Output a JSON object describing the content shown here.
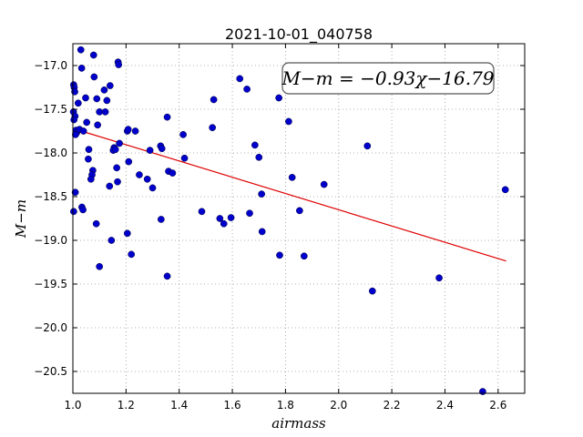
{
  "chart_data": {
    "type": "scatter",
    "title": "2021-10-01_040758",
    "xlabel": "airmass",
    "ylabel": "M−m",
    "xlim": [
      1.0,
      2.7
    ],
    "ylim": [
      -20.75,
      -16.75
    ],
    "y_inverted": true,
    "grid": true,
    "x_ticks": [
      "1.0",
      "1.2",
      "1.4",
      "1.6",
      "1.8",
      "2.0",
      "2.2",
      "2.4",
      "2.6"
    ],
    "y_ticks": [
      "−17.0",
      "−17.5",
      "−18.0",
      "−18.5",
      "−19.0",
      "−19.5",
      "−20.0",
      "−20.5"
    ],
    "annotation": "M−m = −0.93χ−16.79",
    "fit": {
      "slope": -0.93,
      "intercept": -16.79,
      "x_range": [
        1.0,
        2.63
      ]
    },
    "colors": {
      "points": "#0000cc",
      "fit_line": "#dd0000",
      "grid": "#999999"
    },
    "points": [
      [
        1.003,
        -17.22
      ],
      [
        1.005,
        -17.25
      ],
      [
        1.007,
        -17.3
      ],
      [
        1.002,
        -17.53
      ],
      [
        1.008,
        -17.58
      ],
      [
        1.004,
        -17.62
      ],
      [
        1.012,
        -17.74
      ],
      [
        1.014,
        -17.77
      ],
      [
        1.01,
        -17.79
      ],
      [
        1.009,
        -18.45
      ],
      [
        1.003,
        -18.67
      ],
      [
        1.03,
        -16.82
      ],
      [
        1.033,
        -17.03
      ],
      [
        1.048,
        -17.37
      ],
      [
        1.02,
        -17.43
      ],
      [
        1.025,
        -17.73
      ],
      [
        1.04,
        -17.75
      ],
      [
        1.052,
        -17.65
      ],
      [
        1.06,
        -17.96
      ],
      [
        1.058,
        -18.07
      ],
      [
        1.034,
        -18.62
      ],
      [
        1.038,
        -18.65
      ],
      [
        1.075,
        -18.2
      ],
      [
        1.072,
        -18.25
      ],
      [
        1.068,
        -18.3
      ],
      [
        1.078,
        -16.88
      ],
      [
        1.08,
        -17.13
      ],
      [
        1.09,
        -17.38
      ],
      [
        1.1,
        -17.53
      ],
      [
        1.093,
        -17.68
      ],
      [
        1.088,
        -18.81
      ],
      [
        1.1,
        -19.3
      ],
      [
        1.118,
        -17.28
      ],
      [
        1.122,
        -17.53
      ],
      [
        1.128,
        -17.4
      ],
      [
        1.14,
        -17.23
      ],
      [
        1.145,
        -19.0
      ],
      [
        1.138,
        -18.38
      ],
      [
        1.155,
        -17.94
      ],
      [
        1.152,
        -17.97
      ],
      [
        1.16,
        -17.96
      ],
      [
        1.165,
        -18.17
      ],
      [
        1.17,
        -16.96
      ],
      [
        1.172,
        -16.99
      ],
      [
        1.175,
        -17.89
      ],
      [
        1.168,
        -18.33
      ],
      [
        1.205,
        -17.75
      ],
      [
        1.208,
        -17.73
      ],
      [
        1.21,
        -18.1
      ],
      [
        1.205,
        -18.92
      ],
      [
        1.22,
        -19.16
      ],
      [
        1.235,
        -17.75
      ],
      [
        1.25,
        -18.25
      ],
      [
        1.28,
        -18.3
      ],
      [
        1.29,
        -17.97
      ],
      [
        1.3,
        -18.4
      ],
      [
        1.33,
        -17.92
      ],
      [
        1.335,
        -17.95
      ],
      [
        1.332,
        -18.76
      ],
      [
        1.355,
        -17.59
      ],
      [
        1.36,
        -18.21
      ],
      [
        1.375,
        -18.23
      ],
      [
        1.355,
        -19.41
      ],
      [
        1.415,
        -17.79
      ],
      [
        1.42,
        -18.06
      ],
      [
        1.485,
        -18.67
      ],
      [
        1.525,
        -17.71
      ],
      [
        1.53,
        -17.39
      ],
      [
        1.553,
        -18.75
      ],
      [
        1.568,
        -18.81
      ],
      [
        1.595,
        -18.74
      ],
      [
        1.628,
        -17.15
      ],
      [
        1.655,
        -17.27
      ],
      [
        1.665,
        -18.69
      ],
      [
        1.685,
        -17.91
      ],
      [
        1.7,
        -18.05
      ],
      [
        1.71,
        -18.47
      ],
      [
        1.712,
        -18.9
      ],
      [
        1.775,
        -17.37
      ],
      [
        1.778,
        -19.17
      ],
      [
        1.812,
        -17.64
      ],
      [
        1.825,
        -18.28
      ],
      [
        1.853,
        -18.66
      ],
      [
        1.87,
        -19.18
      ],
      [
        1.945,
        -18.36
      ],
      [
        2.108,
        -17.92
      ],
      [
        2.127,
        -19.58
      ],
      [
        2.378,
        -19.43
      ],
      [
        2.542,
        -20.73
      ],
      [
        2.627,
        -18.42
      ]
    ]
  }
}
